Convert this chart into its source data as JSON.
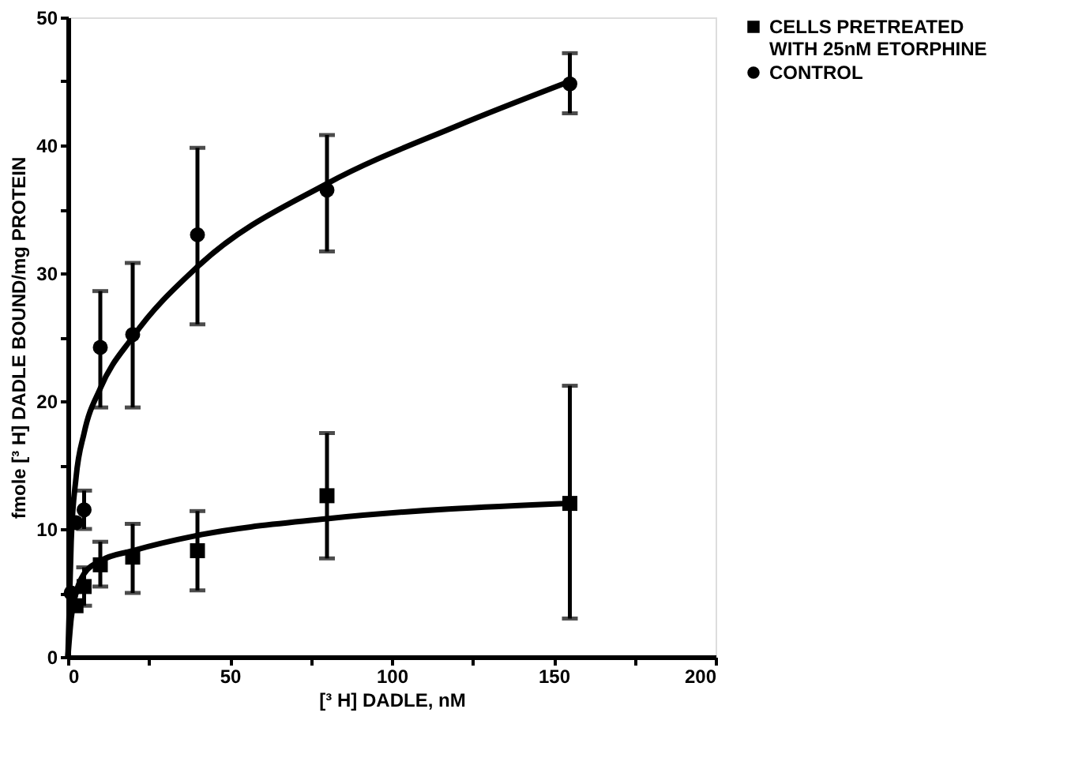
{
  "chart_data": {
    "type": "scatter",
    "xlabel": "[³ H] DADLE, nM",
    "ylabel": "fmole [³ H] DADLE BOUND/mg PROTEIN",
    "xlim": [
      0,
      200
    ],
    "xticks": [
      0,
      {
        "value": 25,
        "label": null
      },
      50,
      {
        "value": 75,
        "label": null
      },
      100,
      {
        "value": 125,
        "label": null
      },
      150,
      {
        "value": 175,
        "label": null
      },
      200
    ],
    "ylim": [
      0,
      50
    ],
    "yticks": [
      0,
      {
        "value": 5,
        "label": null
      },
      10,
      {
        "value": 15,
        "label": null
      },
      20,
      {
        "value": 25,
        "label": null
      },
      30,
      {
        "value": 35,
        "label": null
      },
      40,
      {
        "value": 45,
        "label": null
      },
      50
    ],
    "grid": false,
    "legend": "right",
    "series": [
      {
        "name": "CELLS PRETREATED WITH 25nM ETORPHINE",
        "marker": "square",
        "color": "#000000",
        "x": [
          2.5,
          5,
          10,
          20,
          40,
          80,
          155
        ],
        "values": [
          4,
          5.5,
          7.2,
          7.8,
          8.3,
          12.6,
          12
        ],
        "errors": [
          null,
          [
            4,
            7
          ],
          [
            5.5,
            9
          ],
          [
            5,
            10.4
          ],
          [
            5.2,
            11.4
          ],
          [
            7.7,
            17.5
          ],
          [
            3,
            21.2
          ]
        ]
      },
      {
        "name": "CONTROL",
        "marker": "circle",
        "color": "#000000",
        "x": [
          1,
          2.5,
          5,
          10,
          20,
          40,
          80,
          155
        ],
        "values": [
          5,
          10.5,
          11.5,
          24.2,
          25.2,
          33,
          36.5,
          44.8
        ],
        "errors": [
          null,
          null,
          [
            10,
            13
          ],
          [
            19.5,
            28.6
          ],
          [
            19.5,
            30.8
          ],
          [
            26,
            39.8
          ],
          [
            31.7,
            40.8
          ],
          [
            42.5,
            47.2
          ]
        ]
      },
      {
        "type": "line",
        "color": "#000000",
        "line_style": "solid",
        "x": [
          0,
          1,
          2.5,
          5,
          10,
          20,
          40,
          80,
          155
        ],
        "values": [
          0,
          3,
          5,
          6.5,
          7.5,
          8.3,
          9.5,
          10.8,
          12
        ]
      },
      {
        "type": "line",
        "color": "#000000",
        "line_style": "solid",
        "x": [
          0,
          1,
          2.5,
          5,
          10,
          20,
          40,
          80,
          120,
          155
        ],
        "values": [
          0,
          9,
          14,
          17.5,
          21,
          25,
          30.5,
          37,
          41.5,
          45
        ]
      }
    ]
  }
}
